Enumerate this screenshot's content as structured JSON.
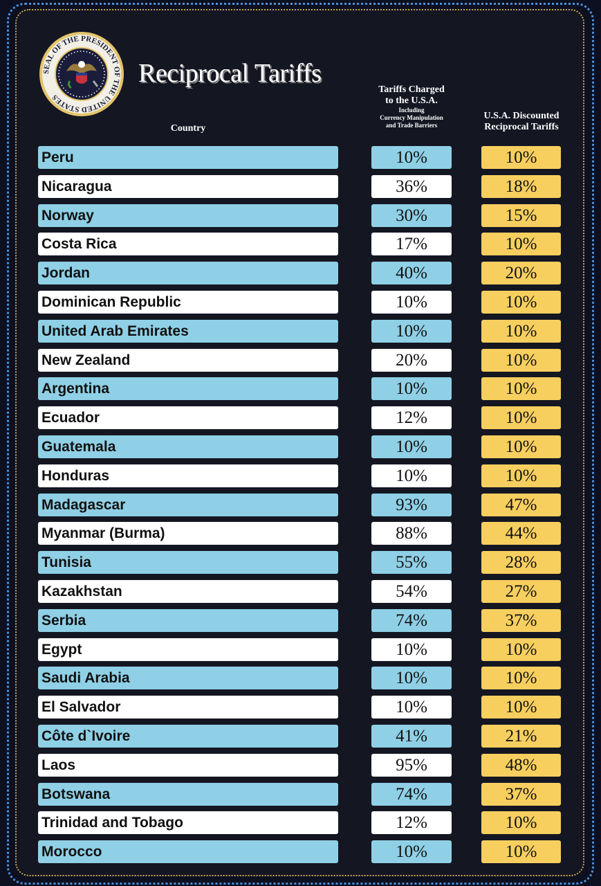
{
  "title": "Reciprocal Tariffs",
  "seal_text": "SEAL OF THE PRESIDENT OF THE UNITED STATES",
  "headers": {
    "country": "Country",
    "charged_line1": "Tariffs Charged",
    "charged_line2": "to the U.S.A.",
    "charged_sub1": "Including",
    "charged_sub2": "Currency Manipulation",
    "charged_sub3": "and Trade Barriers",
    "reciprocal_line1": "U.S.A. Discounted",
    "reciprocal_line2": "Reciprocal Tariffs"
  },
  "colors": {
    "background": "#141622",
    "row_blue": "#8fd0e6",
    "row_white": "#ffffff",
    "reciprocal": "#f7cf5f"
  },
  "rows": [
    {
      "country": "Peru",
      "charged": "10%",
      "reciprocal": "10%"
    },
    {
      "country": "Nicaragua",
      "charged": "36%",
      "reciprocal": "18%"
    },
    {
      "country": "Norway",
      "charged": "30%",
      "reciprocal": "15%"
    },
    {
      "country": "Costa Rica",
      "charged": "17%",
      "reciprocal": "10%"
    },
    {
      "country": "Jordan",
      "charged": "40%",
      "reciprocal": "20%"
    },
    {
      "country": "Dominican Republic",
      "charged": "10%",
      "reciprocal": "10%"
    },
    {
      "country": "United Arab Emirates",
      "charged": "10%",
      "reciprocal": "10%"
    },
    {
      "country": "New Zealand",
      "charged": "20%",
      "reciprocal": "10%"
    },
    {
      "country": "Argentina",
      "charged": "10%",
      "reciprocal": "10%"
    },
    {
      "country": "Ecuador",
      "charged": "12%",
      "reciprocal": "10%"
    },
    {
      "country": "Guatemala",
      "charged": "10%",
      "reciprocal": "10%"
    },
    {
      "country": "Honduras",
      "charged": "10%",
      "reciprocal": "10%"
    },
    {
      "country": "Madagascar",
      "charged": "93%",
      "reciprocal": "47%"
    },
    {
      "country": "Myanmar (Burma)",
      "charged": "88%",
      "reciprocal": "44%"
    },
    {
      "country": "Tunisia",
      "charged": "55%",
      "reciprocal": "28%"
    },
    {
      "country": "Kazakhstan",
      "charged": "54%",
      "reciprocal": "27%"
    },
    {
      "country": "Serbia",
      "charged": "74%",
      "reciprocal": "37%"
    },
    {
      "country": "Egypt",
      "charged": "10%",
      "reciprocal": "10%"
    },
    {
      "country": "Saudi Arabia",
      "charged": "10%",
      "reciprocal": "10%"
    },
    {
      "country": "El Salvador",
      "charged": "10%",
      "reciprocal": "10%"
    },
    {
      "country": "Côte d`Ivoire",
      "charged": "41%",
      "reciprocal": "21%"
    },
    {
      "country": "Laos",
      "charged": "95%",
      "reciprocal": "48%"
    },
    {
      "country": "Botswana",
      "charged": "74%",
      "reciprocal": "37%"
    },
    {
      "country": "Trinidad and Tobago",
      "charged": "12%",
      "reciprocal": "10%"
    },
    {
      "country": "Morocco",
      "charged": "10%",
      "reciprocal": "10%"
    }
  ]
}
